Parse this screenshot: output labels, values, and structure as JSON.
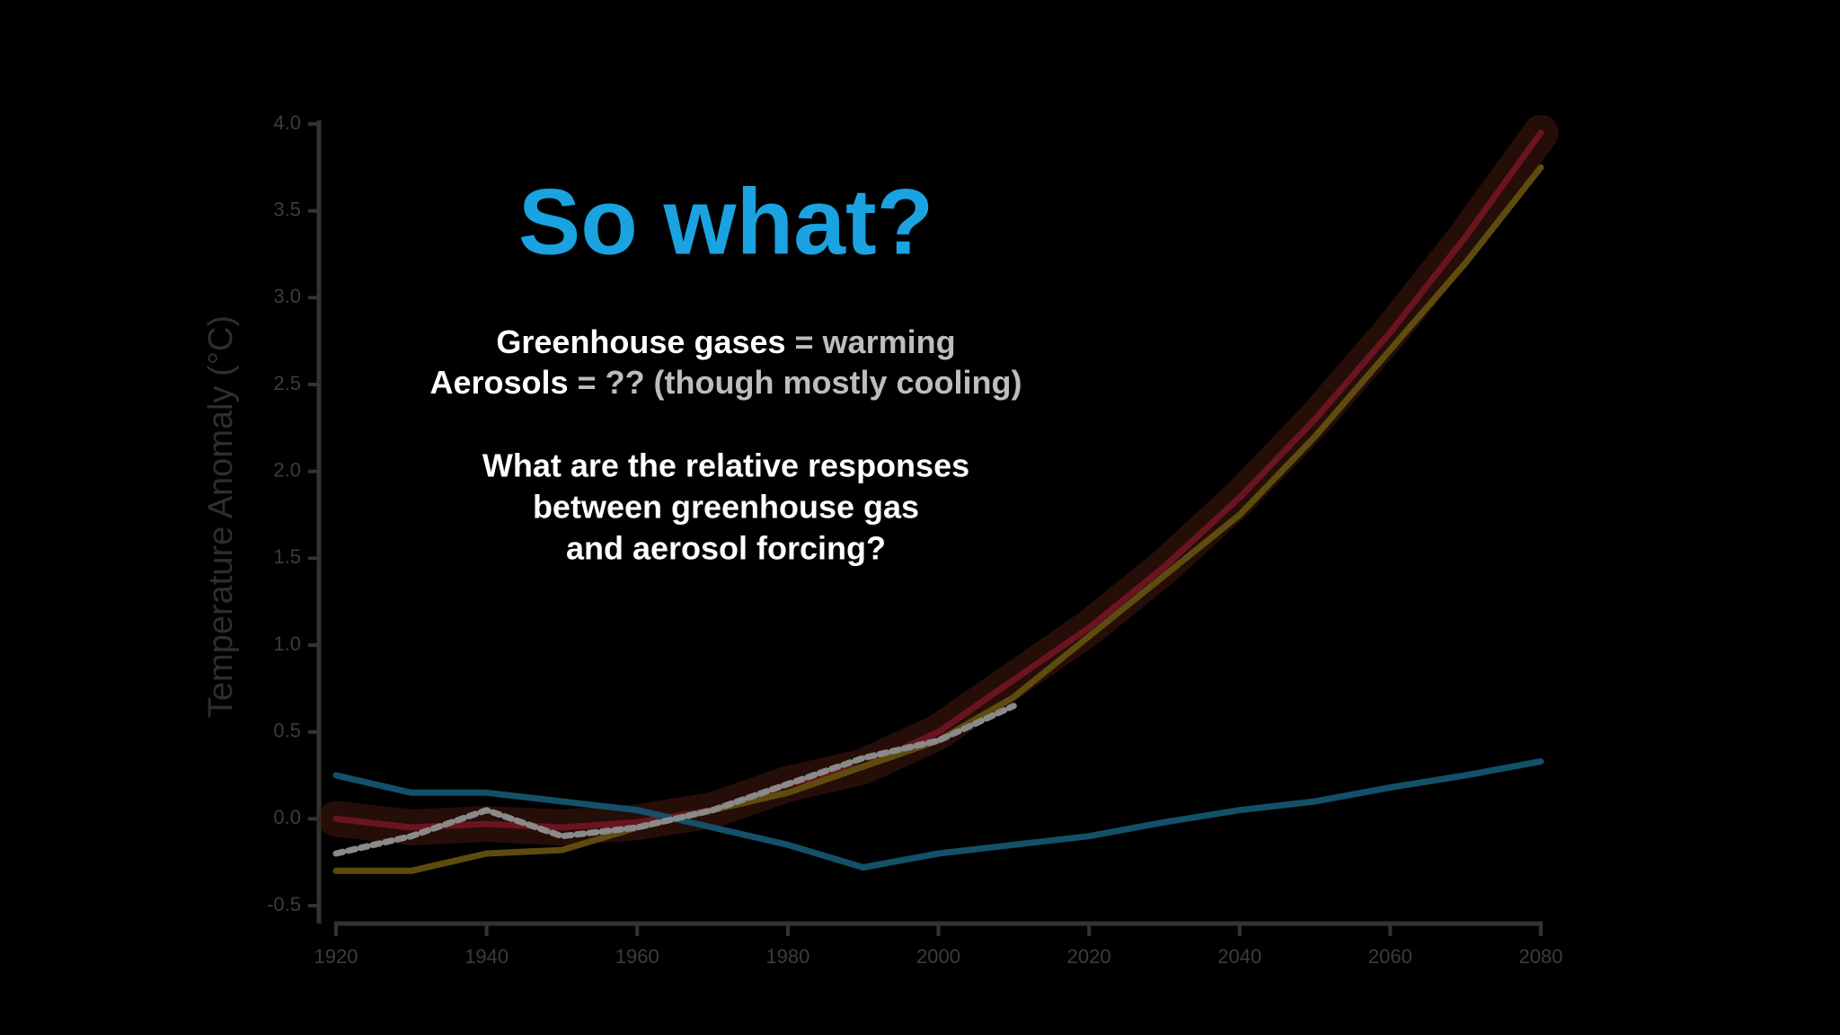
{
  "chart_data": {
    "type": "line",
    "y_label": "Temperature Anomaly (°C)",
    "x": [
      1920,
      1930,
      1940,
      1950,
      1960,
      1970,
      1980,
      1990,
      2000,
      2010,
      2020,
      2030,
      2040,
      2050,
      2060,
      2070,
      2080
    ],
    "series": [
      {
        "color": "#4a1a10",
        "values": [
          0.0,
          -0.05,
          -0.03,
          -0.05,
          -0.02,
          0.05,
          0.2,
          0.3,
          0.5,
          0.8,
          1.1,
          1.45,
          1.85,
          2.3,
          2.8,
          3.35,
          3.95
        ]
      },
      {
        "color": "#6a1420",
        "values": [
          0.0,
          -0.05,
          -0.03,
          -0.05,
          -0.02,
          0.05,
          0.2,
          0.3,
          0.5,
          0.8,
          1.1,
          1.45,
          1.85,
          2.3,
          2.8,
          3.35,
          3.95
        ]
      },
      {
        "color": "#5e4c0e",
        "values": [
          -0.3,
          -0.3,
          -0.2,
          -0.18,
          -0.05,
          0.05,
          0.15,
          0.3,
          0.45,
          0.7,
          1.05,
          1.4,
          1.75,
          2.2,
          2.7,
          3.2,
          3.75
        ]
      },
      {
        "color": "#14506a",
        "values": [
          0.25,
          0.15,
          0.15,
          0.1,
          0.05,
          -0.05,
          -0.15,
          -0.28,
          -0.2,
          -0.15,
          -0.1,
          -0.02,
          0.05,
          0.1,
          0.18,
          0.25,
          0.33
        ]
      },
      {
        "color": "#8a8a8a",
        "dashed": true,
        "values": [
          -0.2,
          -0.1,
          0.05,
          -0.1,
          -0.05,
          0.05,
          0.2,
          0.35,
          0.45,
          0.65,
          null,
          null,
          null,
          null,
          null,
          null,
          null
        ]
      }
    ],
    "xlim": [
      1920,
      2080
    ],
    "xticks": [
      1920,
      1940,
      1960,
      1980,
      2000,
      2020,
      2040,
      2060,
      2080
    ],
    "ylim": [
      -0.5,
      4.0
    ],
    "yticks": [
      -0.5,
      {
        "value": 0,
        "label": "0.0"
      },
      0.5,
      {
        "value": 1,
        "label": "1.0"
      },
      1.5,
      {
        "value": 2,
        "label": "2.0"
      },
      2.5,
      {
        "value": 3,
        "label": "3.0"
      },
      3.5,
      {
        "value": 4,
        "label": "4.0"
      }
    ]
  },
  "overlay": {
    "title": "So what?",
    "line1": {
      "term": "Greenhouse gases",
      "rest": " = warming"
    },
    "line2": {
      "term": "Aerosols",
      "rest": " = ?? (though mostly cooling)"
    },
    "question": [
      "What are the relative responses",
      "between greenhouse gas",
      "and aerosol forcing?"
    ]
  }
}
